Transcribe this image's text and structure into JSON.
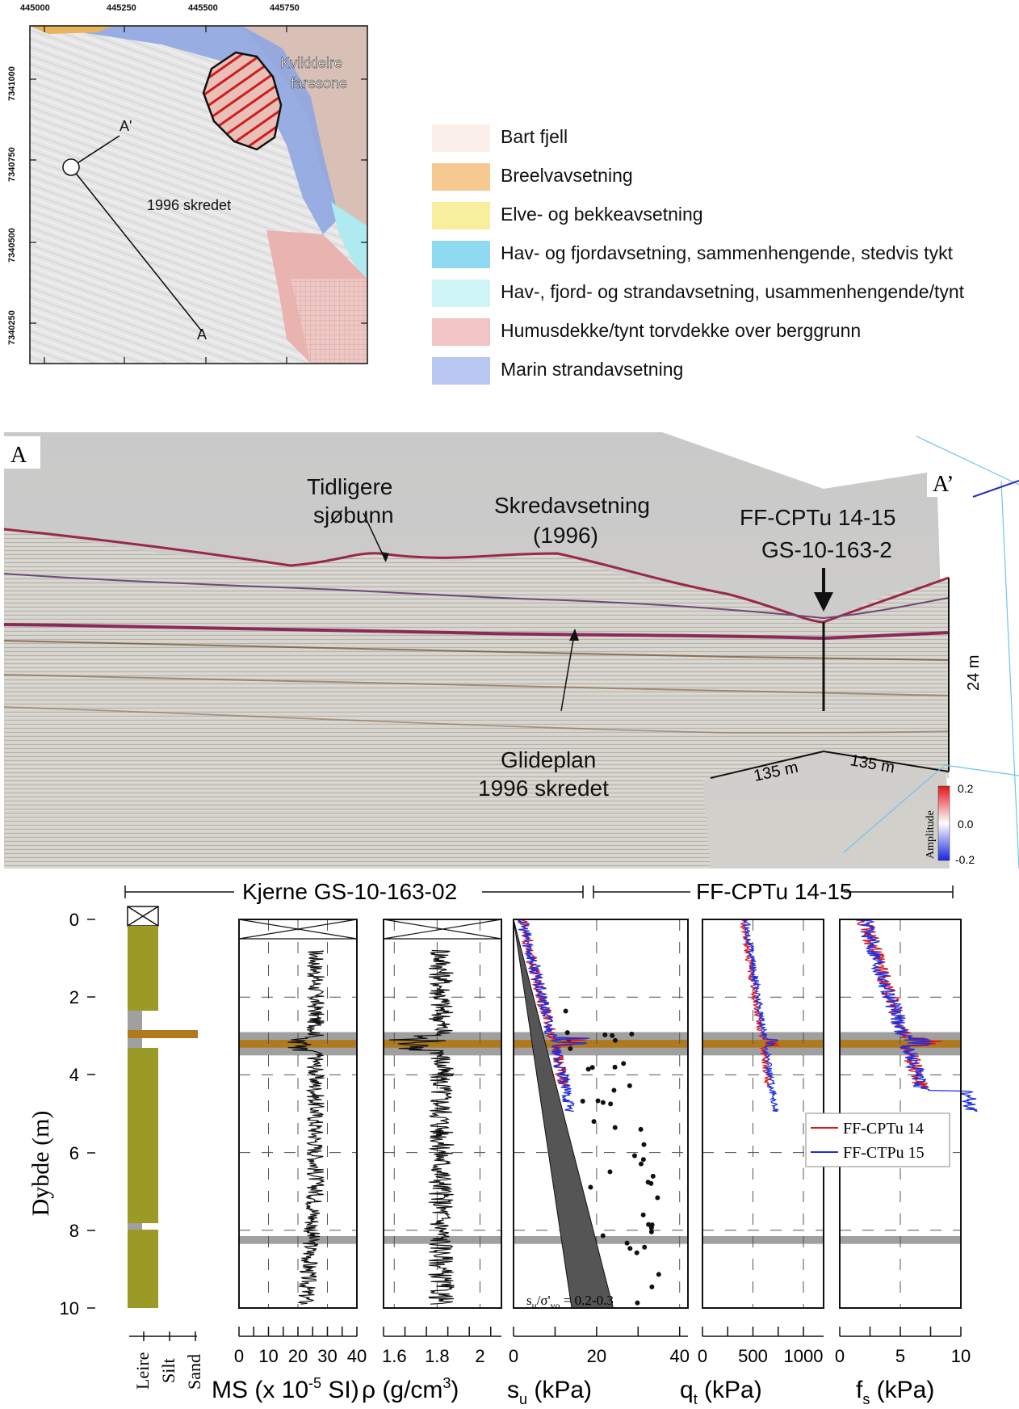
{
  "map": {
    "x_ticks": [
      "445000",
      "445250",
      "445500",
      "445750"
    ],
    "y_ticks": [
      "7341000",
      "7340750",
      "7340500",
      "7340250"
    ],
    "label_zone": "Kvikkleire\nfaresone",
    "label_slide": "1996 skredet",
    "label_a": "A",
    "label_a_prime": "A'",
    "colors": {
      "marine_blue": "#8fa6e0",
      "hazard_red": "#d21c1c",
      "humus_pink": "#e9b3b0",
      "fjord_cyan": "#aeeaf0"
    }
  },
  "legend": [
    {
      "label": "Bart fjell",
      "color": "#fbefe9"
    },
    {
      "label": "Breelvavsetning",
      "color": "#f5c98f"
    },
    {
      "label": "Elve- og bekkeavsetning",
      "color": "#f7ef9d"
    },
    {
      "label": "Hav- og fjordavsetning, sammenhengende, stedvis tykt",
      "color": "#8fdaf0"
    },
    {
      "label": "Hav-, fjord- og strandavsetning, usammenhengende/tynt",
      "color": "#cff5f7"
    },
    {
      "label": "Humusdekke/tynt torvdekke over berggrunn",
      "color": "#f1c5c3"
    },
    {
      "label": "Marin strandavsetning",
      "color": "#b7c7f2"
    }
  ],
  "seismic": {
    "label_a": "A",
    "label_a_prime": "A’",
    "label_old_seabed": [
      "Tidligere",
      "sjøbunn"
    ],
    "label_slide_deposit": [
      "Skredavsetning",
      "(1996)"
    ],
    "label_cpt": "FF-CPTu 14-15",
    "label_core": "GS-10-163-2",
    "label_glide": [
      "Glideplan",
      "1996 skredet"
    ],
    "scale_24m": "24 m",
    "scale_135m_a": "135 m",
    "scale_135m_b": "135 m",
    "amplitude_title": "Amplitude",
    "amplitude_ticks": [
      "0.2",
      "0.0",
      "-0.2"
    ]
  },
  "logs": {
    "header_core": "Kjerne GS-10-163-02",
    "header_cpt": "FF-CPTu 14-15",
    "y_label": "Dybde (m)",
    "y_ticks": [
      "0",
      "2",
      "4",
      "6",
      "8",
      "10"
    ],
    "lith_labels": [
      "Leire",
      "Silt",
      "Sand"
    ],
    "panels": [
      {
        "xlabel_main": "MS (x 10",
        "xlabel_sup": "-5",
        "xlabel_tail": " SI)",
        "ticks": [
          "0",
          "10",
          "20",
          "30",
          "40"
        ]
      },
      {
        "xlabel_main": "ρ (g/cm",
        "xlabel_sup": "3",
        "xlabel_tail": ")",
        "ticks": [
          "1.6",
          "1.8",
          "2"
        ]
      },
      {
        "xlabel_main": "s",
        "xlabel_sub": "u",
        "xlabel_tail": " (kPa)",
        "ticks": [
          "0",
          "20",
          "40"
        ]
      },
      {
        "xlabel_main": "q",
        "xlabel_sub": "t",
        "xlabel_tail": " (kPa)",
        "ticks": [
          "0",
          "500",
          "1000"
        ]
      },
      {
        "xlabel_main": "f",
        "xlabel_sub": "s",
        "xlabel_tail": " (kPa)",
        "ticks": [
          "0",
          "5",
          "10"
        ]
      }
    ],
    "su_ratio_label": "s",
    "su_ratio_sub1": "u",
    "su_ratio_mid": "/σ'",
    "su_ratio_sub2": "vo",
    "su_ratio_tail": " = 0.2-0.3",
    "legend": [
      {
        "label": "FF-CPTu 14",
        "color": "#e0181a"
      },
      {
        "label": "FF-CTPu 15",
        "color": "#1c2ee0"
      }
    ],
    "colors": {
      "clay": "#9c9a27",
      "sand_band": "#b07a1c",
      "grey_band": "#a0a0a0"
    }
  }
}
